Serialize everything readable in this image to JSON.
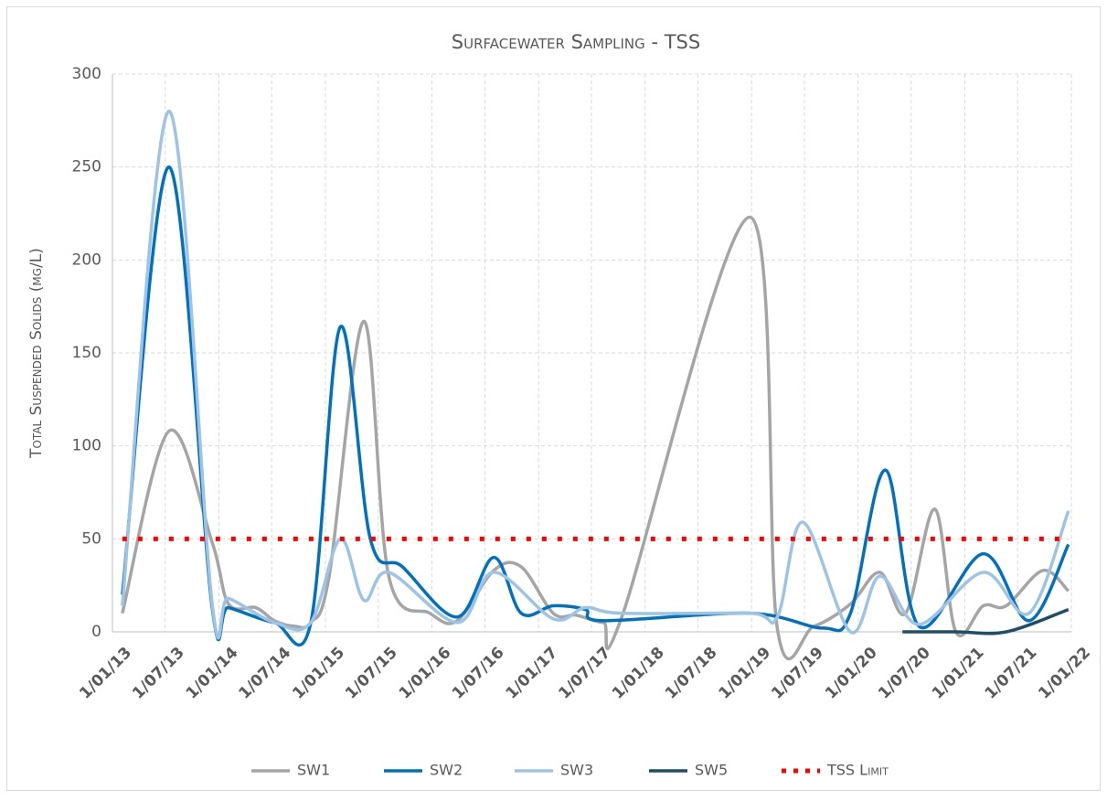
{
  "chart_data": {
    "type": "line",
    "title": "Surfacewater Sampling - TSS",
    "y_label": "Total Suspended Solids (mg/L)",
    "xlim": [
      "2013-01-01",
      "2022-01-01"
    ],
    "xticks": [
      {
        "value": "2013-01-01",
        "label": "1/01/13"
      },
      {
        "value": "2013-07-01",
        "label": "1/07/13"
      },
      {
        "value": "2014-01-01",
        "label": "1/01/14"
      },
      {
        "value": "2014-07-01",
        "label": "1/07/14"
      },
      {
        "value": "2015-01-01",
        "label": "1/01/15"
      },
      {
        "value": "2015-07-01",
        "label": "1/07/15"
      },
      {
        "value": "2016-01-01",
        "label": "1/01/16"
      },
      {
        "value": "2016-07-01",
        "label": "1/07/16"
      },
      {
        "value": "2017-01-01",
        "label": "1/01/17"
      },
      {
        "value": "2017-07-01",
        "label": "1/07/17"
      },
      {
        "value": "2018-01-01",
        "label": "1/01/18"
      },
      {
        "value": "2018-07-01",
        "label": "1/07/18"
      },
      {
        "value": "2019-01-01",
        "label": "1/01/19"
      },
      {
        "value": "2019-07-01",
        "label": "1/07/19"
      },
      {
        "value": "2020-01-01",
        "label": "1/01/20"
      },
      {
        "value": "2020-07-01",
        "label": "1/07/20"
      },
      {
        "value": "2021-01-01",
        "label": "1/01/21"
      },
      {
        "value": "2021-07-01",
        "label": "1/07/21"
      },
      {
        "value": "2022-01-01",
        "label": "1/01/22"
      }
    ],
    "ylim": [
      0,
      300
    ],
    "yticks": [
      0,
      50,
      100,
      150,
      200,
      250,
      300
    ],
    "grid": true,
    "legend": "bottom",
    "series": [
      {
        "name": "SW1",
        "color": "#a5a5a5",
        "x": [
          "2013-02-04",
          "2013-07-14",
          "2013-12-09",
          "2014-02-03",
          "2014-05-08",
          "2014-07-10",
          "2014-09-17",
          "2014-11-12",
          "2015-01-14",
          "2015-05-13",
          "2015-08-06",
          "2015-12-25",
          "2016-03-28",
          "2016-07-31",
          "2016-11-02",
          "2017-02-20",
          "2017-05-09",
          "2017-08-11",
          "2017-10-13",
          "2018-12-26",
          "2019-03-30",
          "2019-08-02",
          "2019-12-06",
          "2020-03-16",
          "2020-06-12",
          "2020-09-20",
          "2020-12-01",
          "2021-03-05",
          "2021-05-23",
          "2021-09-25",
          "2021-12-22"
        ],
        "values": [
          10,
          108,
          48,
          15,
          13,
          6,
          3,
          5,
          30,
          167,
          30,
          10,
          6,
          33,
          35,
          10,
          9,
          5,
          8,
          223,
          2,
          3,
          15,
          32,
          10,
          66,
          0,
          14,
          14,
          33,
          22
        ]
      },
      {
        "name": "SW2",
        "color": "#0070c0",
        "x": [
          "2013-02-04",
          "2013-07-14",
          "2013-12-09",
          "2014-02-03",
          "2014-07-10",
          "2014-11-12",
          "2015-02-21",
          "2015-06-04",
          "2015-09-22",
          "2016-03-28",
          "2016-07-31",
          "2016-11-02",
          "2017-02-20",
          "2017-06-10",
          "2017-08-11",
          "2018-12-26",
          "2019-09-03",
          "2019-12-06",
          "2020-04-04",
          "2020-07-28",
          "2021-03-05",
          "2021-08-09",
          "2021-12-22"
        ],
        "values": [
          20,
          250,
          13,
          13,
          5,
          5,
          164,
          50,
          35,
          8,
          40,
          10,
          14,
          12,
          6,
          10,
          2,
          10,
          87,
          3,
          42,
          6,
          47
        ]
      },
      {
        "name": "SW3",
        "color": "#9dc3e6",
        "x": [
          "2013-02-04",
          "2013-07-14",
          "2013-12-09",
          "2014-02-03",
          "2014-07-10",
          "2014-11-12",
          "2015-02-21",
          "2015-05-13",
          "2015-08-06",
          "2016-03-28",
          "2016-07-31",
          "2017-02-20",
          "2017-06-10",
          "2017-10-13",
          "2018-12-26",
          "2019-03-30",
          "2019-06-26",
          "2019-12-06",
          "2020-03-16",
          "2020-07-28",
          "2021-03-05",
          "2021-08-09",
          "2021-12-22"
        ],
        "values": [
          14,
          280,
          15,
          18,
          5,
          5,
          50,
          17,
          32,
          5,
          32,
          7,
          13,
          10,
          10,
          8,
          59,
          0,
          30,
          4,
          32,
          10,
          65
        ]
      },
      {
        "name": "SW5",
        "color": "#1f4e69",
        "x": [
          "2020-06-01",
          "2020-12-01",
          "2021-05-23",
          "2021-12-22"
        ],
        "values": [
          0,
          0,
          0,
          12
        ]
      },
      {
        "name": "TSS Limit",
        "color": "#ff0000",
        "dotted": true,
        "x": [
          "2013-02-04",
          "2021-12-22"
        ],
        "values": [
          50,
          50
        ]
      }
    ]
  }
}
